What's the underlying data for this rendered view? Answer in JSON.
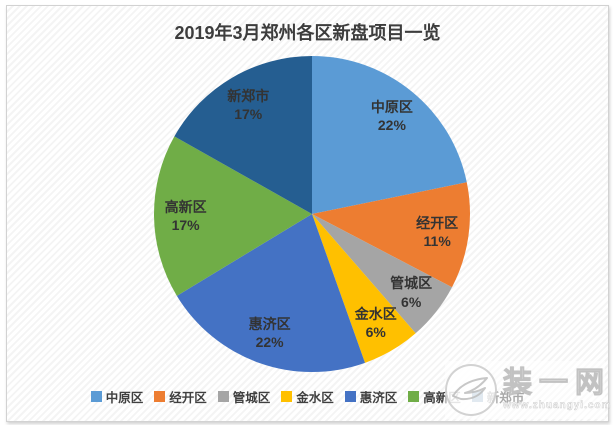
{
  "chart_data": {
    "type": "pie",
    "title": "2019年3月郑州各区新盘项目一览",
    "legend_position": "bottom",
    "start_angle_deg": 0,
    "direction": "clockwise",
    "data_labels": "name and percent, inside slices",
    "slices": [
      {
        "label": "中原区",
        "value_pct": 22,
        "color": "#5B9BD5"
      },
      {
        "label": "经开区",
        "value_pct": 11,
        "color": "#ED7D31"
      },
      {
        "label": "管城区",
        "value_pct": 6,
        "color": "#A5A5A5"
      },
      {
        "label": "金水区",
        "value_pct": 6,
        "color": "#FFC000"
      },
      {
        "label": "惠济区",
        "value_pct": 22,
        "color": "#4472C4"
      },
      {
        "label": "高新区",
        "value_pct": 17,
        "color": "#70AD47"
      },
      {
        "label": "新郑市",
        "value_pct": 17,
        "color": "#255E91"
      }
    ]
  },
  "watermark": {
    "brand": "装一网",
    "url": "www.zhuangyi.com"
  }
}
